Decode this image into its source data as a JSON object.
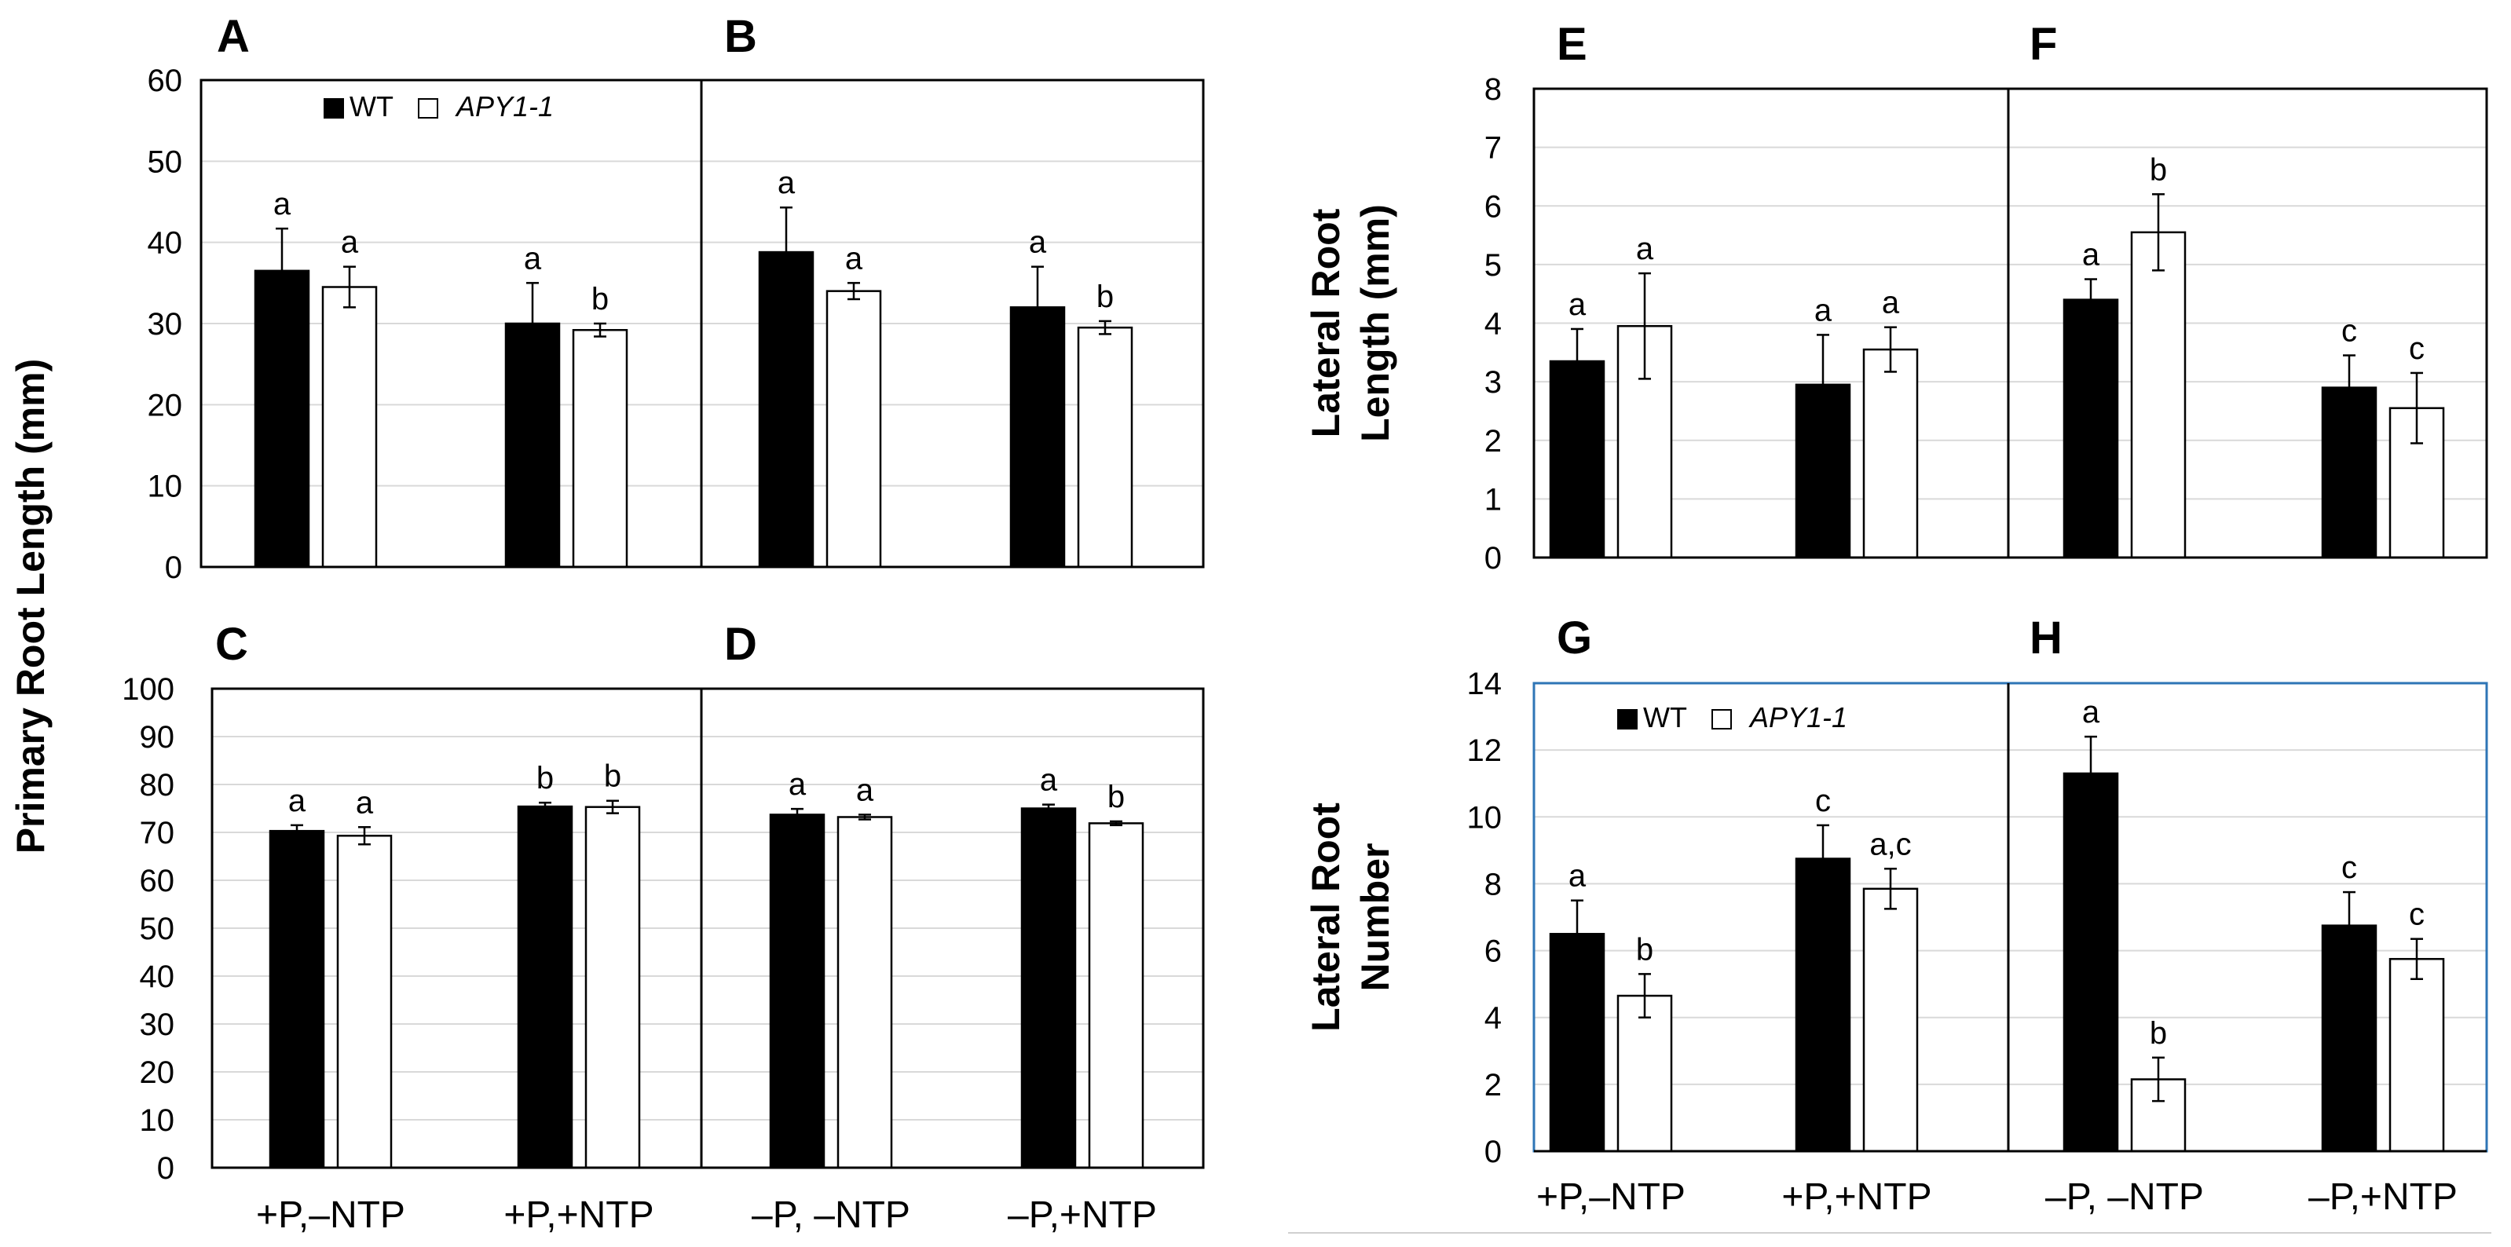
{
  "legend": {
    "wt": "WT",
    "mutant": "APY1-1"
  },
  "categories": [
    "+P,–NTP",
    "+P,+NTP",
    "–P, –NTP",
    "–P,+NTP"
  ],
  "colors": {
    "wt": "#000000",
    "mutant": "#ffffff",
    "frame": "#000000",
    "frame_blue": "#2e75b6",
    "grid": "#d9d9d9"
  },
  "chart_data": [
    {
      "type": "bar",
      "id": "top-left",
      "panels": [
        "A",
        "B"
      ],
      "ylabel": "",
      "ylim": [
        0,
        60
      ],
      "yticks": [
        0,
        10,
        20,
        30,
        40,
        50,
        60
      ],
      "categories": [
        "+P,–NTP",
        "+P,+NTP",
        "–P, –NTP",
        "–P,+NTP"
      ],
      "show_legend": true,
      "series": [
        {
          "name": "WT",
          "values": [
            36.5,
            30,
            38.8,
            32
          ],
          "errors": [
            5.2,
            5,
            5.5,
            5
          ],
          "labels": [
            "a",
            "a",
            "a",
            "a"
          ]
        },
        {
          "name": "APY1-1",
          "values": [
            34.5,
            29.2,
            34,
            29.5
          ],
          "errors": [
            2.5,
            0.8,
            1,
            0.8
          ],
          "labels": [
            "a",
            "b",
            "a",
            "b"
          ]
        }
      ]
    },
    {
      "type": "bar",
      "id": "bottom-left",
      "panels": [
        "C",
        "D"
      ],
      "ylabel": "",
      "ylim": [
        0,
        100
      ],
      "yticks": [
        0,
        10,
        20,
        30,
        40,
        50,
        60,
        70,
        80,
        90,
        100
      ],
      "categories": [
        "+P,–NTP",
        "+P,+NTP",
        "–P, –NTP",
        "–P,+NTP"
      ],
      "show_legend": false,
      "series": [
        {
          "name": "WT",
          "values": [
            70.3,
            75.4,
            73.7,
            75
          ],
          "errors": [
            1.2,
            0.8,
            1.2,
            0.8
          ],
          "labels": [
            "a",
            "b",
            "a",
            "a"
          ]
        },
        {
          "name": "APY1-1",
          "values": [
            69.3,
            75.3,
            73.2,
            71.9
          ],
          "errors": [
            1.8,
            1.3,
            0.5,
            0.4
          ],
          "labels": [
            "a",
            "b",
            "a",
            "b"
          ]
        }
      ]
    },
    {
      "type": "bar",
      "id": "top-right",
      "panels": [
        "E",
        "F"
      ],
      "ylabel": "Lateral Root Length (mm)",
      "ylabel_lines": [
        "Lateral Root",
        "Length (mm)"
      ],
      "ylim": [
        0,
        8
      ],
      "yticks": [
        0,
        1,
        2,
        3,
        4,
        5,
        6,
        7,
        8
      ],
      "categories": [
        "+P,–NTP",
        "+P,+NTP",
        "–P, –NTP",
        "–P,+NTP"
      ],
      "show_legend": false,
      "series": [
        {
          "name": "WT",
          "values": [
            3.35,
            2.95,
            4.4,
            2.9
          ],
          "errors": [
            0.55,
            0.85,
            0.35,
            0.55
          ],
          "labels": [
            "a",
            "a",
            "a",
            "c"
          ]
        },
        {
          "name": "APY1-1",
          "values": [
            3.95,
            3.55,
            5.55,
            2.55
          ],
          "errors": [
            0.9,
            0.38,
            0.65,
            0.6
          ],
          "labels": [
            "a",
            "a",
            "b",
            "c"
          ]
        }
      ]
    },
    {
      "type": "bar",
      "id": "bottom-right",
      "panels": [
        "G",
        "H"
      ],
      "ylabel": "Lateral Root Number",
      "ylabel_lines": [
        "Lateral Root",
        "Number"
      ],
      "ylim": [
        0,
        14
      ],
      "yticks": [
        0,
        2,
        4,
        6,
        8,
        10,
        12,
        14
      ],
      "categories": [
        "+P,–NTP",
        "+P,+NTP",
        "–P, –NTP",
        "–P,+NTP"
      ],
      "show_legend": true,
      "series": [
        {
          "name": "WT",
          "values": [
            6.5,
            8.75,
            11.3,
            6.75
          ],
          "errors": [
            1,
            1,
            1.1,
            1
          ],
          "labels": [
            "a",
            "c",
            "a",
            "c"
          ]
        },
        {
          "name": "APY1-1",
          "values": [
            4.65,
            7.85,
            2.15,
            5.75
          ],
          "errors": [
            0.65,
            0.6,
            0.65,
            0.6
          ],
          "labels": [
            "b",
            "a,c",
            "b",
            "c"
          ]
        }
      ]
    }
  ],
  "shared_ylabel_left": "Primary Root Length (mm)"
}
